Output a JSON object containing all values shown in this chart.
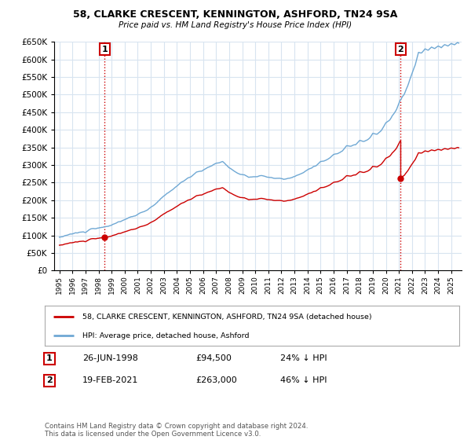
{
  "title": "58, CLARKE CRESCENT, KENNINGTON, ASHFORD, TN24 9SA",
  "subtitle": "Price paid vs. HM Land Registry's House Price Index (HPI)",
  "legend_red": "58, CLARKE CRESCENT, KENNINGTON, ASHFORD, TN24 9SA (detached house)",
  "legend_blue": "HPI: Average price, detached house, Ashford",
  "purchase1_date": "26-JUN-1998",
  "purchase1_price": 94500,
  "purchase1_label": "1",
  "purchase1_pct": "24% ↓ HPI",
  "purchase1_year": 1998.458,
  "purchase2_date": "19-FEB-2021",
  "purchase2_price": 263000,
  "purchase2_label": "2",
  "purchase2_pct": "46% ↓ HPI",
  "purchase2_year": 2021.125,
  "footnote": "Contains HM Land Registry data © Crown copyright and database right 2024.\nThis data is licensed under the Open Government Licence v3.0.",
  "hpi_color": "#6fa8d4",
  "price_color": "#cc0000",
  "background_color": "#ffffff",
  "grid_color": "#d8e4f0",
  "ylim": [
    0,
    650000
  ],
  "yticks": [
    0,
    50000,
    100000,
    150000,
    200000,
    250000,
    300000,
    350000,
    400000,
    450000,
    500000,
    550000,
    600000,
    650000
  ],
  "xlim_start": 1994.6,
  "xlim_end": 2025.8,
  "scale1": 0.76,
  "scale2": 0.54
}
